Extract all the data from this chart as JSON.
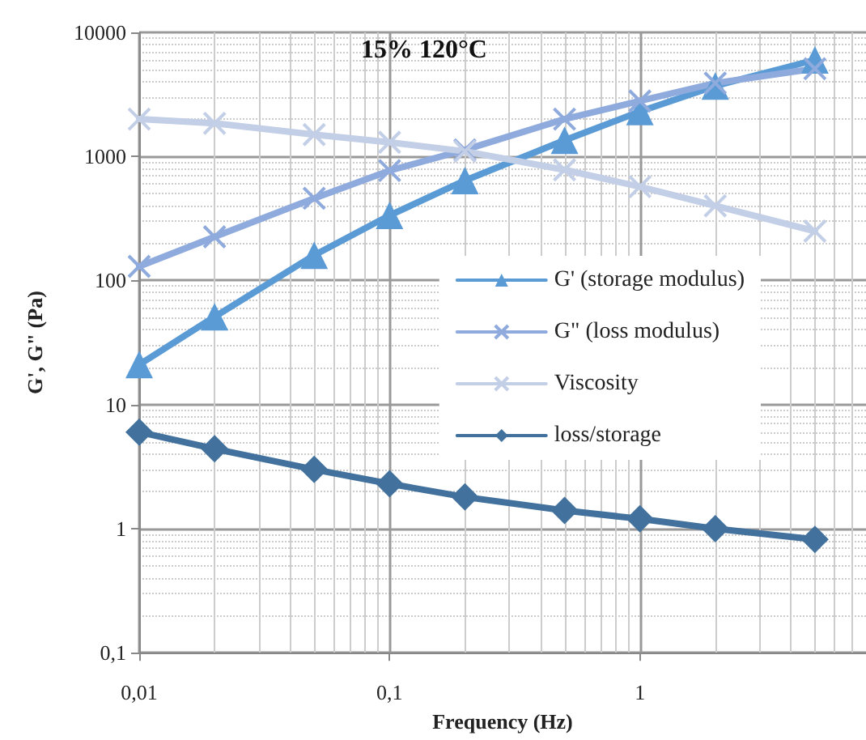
{
  "chart_data": {
    "type": "line",
    "title": "15% 120°C",
    "xlabel": "Frequency (Hz)",
    "ylabel": "G', G\" (Pa)",
    "log": "xy",
    "grid": true,
    "legend": "right",
    "line_style": "solid",
    "xlim": [
      0.01,
      8
    ],
    "xticks": [
      {
        "value": 0.01,
        "label": "0,01"
      },
      {
        "value": 0.1,
        "label": "0,1"
      },
      1
    ],
    "ylim": [
      0.1,
      10000
    ],
    "yticks": [
      {
        "value": 0.1,
        "label": "0,1"
      },
      1,
      10,
      100,
      1000,
      10000
    ],
    "x": [
      0.01,
      0.02,
      0.05,
      0.1,
      0.2,
      0.5,
      1,
      2,
      5
    ],
    "series": [
      {
        "name": "G' (storage modulus)",
        "color": "#5b9bd5",
        "marker": "triangle",
        "values": [
          21,
          51,
          160,
          335,
          640,
          1350,
          2300,
          3700,
          6000
        ]
      },
      {
        "name": "G\" (loss modulus)",
        "color": "#8faadc",
        "marker": "cross",
        "values": [
          130,
          225,
          460,
          770,
          1130,
          2000,
          2800,
          3900,
          5100
        ]
      },
      {
        "name": "Viscosity",
        "color": "#c3cfe6",
        "marker": "cross",
        "values": [
          2000,
          1850,
          1500,
          1300,
          1100,
          780,
          570,
          400,
          250
        ]
      },
      {
        "name": "loss/storage",
        "color": "#41719c",
        "marker": "diamond",
        "values": [
          6,
          4.4,
          3,
          2.3,
          1.8,
          1.4,
          1.2,
          1.0,
          0.82
        ]
      }
    ]
  }
}
